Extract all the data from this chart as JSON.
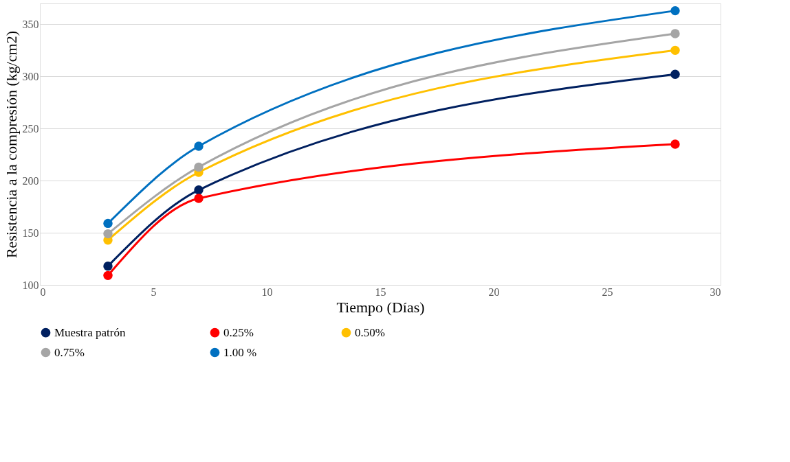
{
  "chart_data": {
    "type": "line",
    "xlabel": "Tiempo (Días)",
    "ylabel": "Resistencia a la compresión (kg/cm2)",
    "x": [
      3,
      7,
      28
    ],
    "series": [
      {
        "name": "Muestra patrón",
        "color": "#002060",
        "values": [
          118,
          191,
          302
        ]
      },
      {
        "name": "0.25%",
        "color": "#ff0000",
        "values": [
          109,
          183,
          235
        ]
      },
      {
        "name": "0.50%",
        "color": "#ffc000",
        "values": [
          143,
          208,
          325
        ]
      },
      {
        "name": "0.75%",
        "color": "#a5a5a5",
        "values": [
          149,
          213,
          341
        ]
      },
      {
        "name": "1.00 %",
        "color": "#0070c0",
        "values": [
          159,
          233,
          363
        ]
      }
    ],
    "xlim": [
      0,
      30
    ],
    "xticks": [
      0,
      5,
      10,
      15,
      20,
      25,
      30
    ],
    "ylim": [
      100,
      370
    ],
    "yticks": [
      100,
      150,
      200,
      250,
      300,
      350
    ],
    "grid": "y",
    "legend": "bottom",
    "marker": "circle",
    "line_style": "solid"
  }
}
